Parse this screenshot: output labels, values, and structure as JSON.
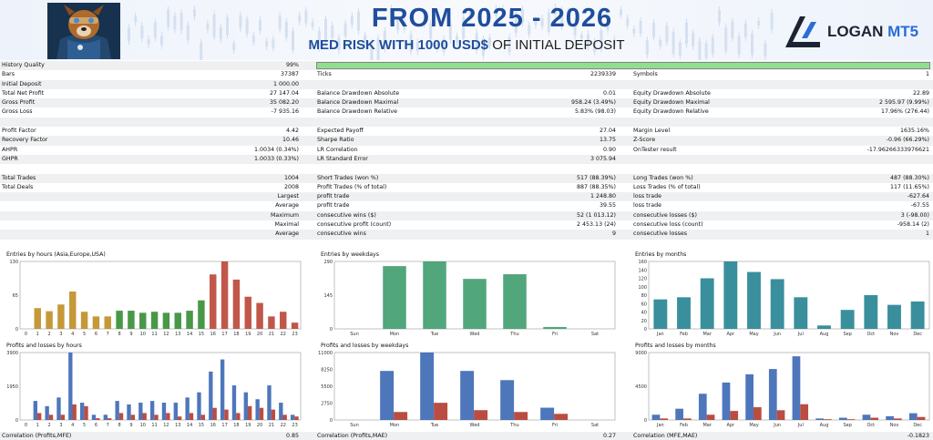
{
  "banner": {
    "title": "FROM 2025 - 2026",
    "subtitle_bold": "MED RISK WITH 1000 USD$",
    "subtitle_rest": " OF INITIAL DEPOSIT",
    "logo_word": "LOGAN",
    "logo_suffix": " MT5",
    "accent": "#1f4e9c"
  },
  "stats": [
    {
      "l1": "History Quality",
      "v1": "99%",
      "bar": true
    },
    {
      "l1": "Bars",
      "v1": "37387",
      "l2": "Ticks",
      "v2": "2239339",
      "l3": "Symbols",
      "v3": "1"
    },
    {
      "l1": "Initial Deposit",
      "v1": "1 000.00"
    },
    {
      "l1": "Total Net Profit",
      "v1": "27 147.04",
      "l2": "Balance Drawdown Absolute",
      "v2": "0.01",
      "l3": "Equity Drawdown Absolute",
      "v3": "22.89"
    },
    {
      "l1": "Gross Profit",
      "v1": "35 082.20",
      "l2": "Balance Drawdown Maximal",
      "v2": "958.24 (3.49%)",
      "l3": "Equity Drawdown Maximal",
      "v3": "2 595.97 (9.99%)"
    },
    {
      "l1": "Gross Loss",
      "v1": "-7 935.16",
      "l2": "Balance Drawdown Relative",
      "v2": "5.83% (98.03)",
      "l3": "Equity Drawdown Relative",
      "v3": "17.96% (276.44)"
    },
    {},
    {
      "l1": "Profit Factor",
      "v1": "4.42",
      "l2": "Expected Payoff",
      "v2": "27.04",
      "l3": "Margin Level",
      "v3": "1635.16%"
    },
    {
      "l1": "Recovery Factor",
      "v1": "10.46",
      "l2": "Sharpe Ratio",
      "v2": "13.75",
      "l3": "Z-Score",
      "v3": "-0.96 (66.29%)"
    },
    {
      "l1": "AHPR",
      "v1": "1.0034 (0.34%)",
      "l2": "LR Correlation",
      "v2": "0.90",
      "l3": "OnTester result",
      "v3": "-17.96266333976621"
    },
    {
      "l1": "GHPR",
      "v1": "1.0033 (0.33%)",
      "l2": "LR Standard Error",
      "v2": "3 075.94"
    },
    {},
    {
      "l1": "Total Trades",
      "v1": "1004",
      "l2": "Short Trades (won %)",
      "v2": "517 (88.39%)",
      "l3": "Long Trades (won %)",
      "v3": "487 (88.30%)"
    },
    {
      "l1": "Total Deals",
      "v1": "2008",
      "l2": "Profit Trades (% of total)",
      "v2": "887 (88.35%)",
      "l3": "Loss Trades (% of total)",
      "v3": "117 (11.65%)"
    },
    {
      "v1": "Largest",
      "l2": "profit trade",
      "v2": "1 248.80",
      "l3": "loss trade",
      "v3": "-627.64"
    },
    {
      "v1": "Average",
      "l2": "profit trade",
      "v2": "39.55",
      "l3": "loss trade",
      "v3": "-67.55"
    },
    {
      "v1": "Maximum",
      "l2": "consecutive wins ($)",
      "v2": "52 (1 013.12)",
      "l3": "consecutive losses ($)",
      "v3": "3 (-98.00)"
    },
    {
      "v1": "Maximal",
      "l2": "consecutive profit (count)",
      "v2": "2 453.13 (24)",
      "l3": "consecutive loss (count)",
      "v3": "-958.14 (2)"
    },
    {
      "v1": "Average",
      "l2": "consecutive wins",
      "v2": "9",
      "l3": "consecutive losses",
      "v3": "1"
    }
  ],
  "chart_data": [
    {
      "type": "bar",
      "title": "Entries by hours (Asia,Europe,USA)",
      "categories": [
        "0",
        "1",
        "2",
        "3",
        "4",
        "5",
        "6",
        "7",
        "8",
        "9",
        "10",
        "11",
        "12",
        "13",
        "14",
        "15",
        "16",
        "17",
        "18",
        "19",
        "20",
        "21",
        "22",
        "23"
      ],
      "values": [
        0,
        40,
        34,
        47,
        72,
        33,
        24,
        24,
        35,
        35,
        31,
        33,
        31,
        31,
        35,
        55,
        105,
        130,
        95,
        62,
        50,
        24,
        33,
        12
      ],
      "ylim": [
        0,
        130
      ],
      "yticks": [
        "0",
        "65",
        "130"
      ],
      "colors": [
        "#ffffff",
        "#bd8a1c",
        "#bd8a1c",
        "#bd8a1c",
        "#bd8a1c",
        "#bd8a1c",
        "#bd8a1c",
        "#bd8a1c",
        "#2f8a2f",
        "#2f8a2f",
        "#2f8a2f",
        "#2f8a2f",
        "#2f8a2f",
        "#2f8a2f",
        "#2f8a2f",
        "#2f8a2f",
        "#b84030",
        "#b84030",
        "#b84030",
        "#b84030",
        "#b84030",
        "#b84030",
        "#b84030",
        "#b84030"
      ]
    },
    {
      "type": "bar",
      "title": "Entries by weekdays",
      "categories": [
        "Sun",
        "Mon",
        "Tue",
        "Wed",
        "Thu",
        "Fri",
        "Sat"
      ],
      "values": [
        0,
        270,
        290,
        215,
        235,
        8,
        0
      ],
      "ylim": [
        0,
        290
      ],
      "yticks": [
        "0",
        "145",
        "290"
      ],
      "colors": [
        "#3a9a6a"
      ]
    },
    {
      "type": "bar",
      "title": "Entries by months",
      "categories": [
        "Jan",
        "Feb",
        "Mar",
        "Apr",
        "May",
        "Jun",
        "Jul",
        "Aug",
        "Sep",
        "Oct",
        "Nov",
        "Dec"
      ],
      "values": [
        70,
        75,
        120,
        160,
        135,
        118,
        75,
        8,
        45,
        80,
        57,
        65
      ],
      "ylim": [
        0,
        160
      ],
      "yticks": [
        "0",
        "20",
        "40",
        "60",
        "80",
        "100",
        "120",
        "140",
        "160"
      ],
      "colors": [
        "#1f7f8f"
      ]
    },
    {
      "type": "bar",
      "title": "Profits and losses by hours",
      "categories": [
        "0",
        "1",
        "2",
        "3",
        "4",
        "5",
        "6",
        "7",
        "8",
        "9",
        "10",
        "11",
        "12",
        "13",
        "14",
        "15",
        "16",
        "17",
        "18",
        "19",
        "20",
        "21",
        "22",
        "23"
      ],
      "series": [
        {
          "name": "profit",
          "values": [
            0,
            1100,
            800,
            1300,
            3900,
            1000,
            300,
            300,
            1100,
            900,
            1000,
            1100,
            1000,
            1000,
            1300,
            1600,
            2800,
            3500,
            2000,
            1600,
            1200,
            2000,
            1000,
            300
          ]
        },
        {
          "name": "loss",
          "values": [
            0,
            400,
            300,
            300,
            900,
            800,
            100,
            100,
            400,
            300,
            400,
            300,
            400,
            200,
            400,
            300,
            700,
            600,
            400,
            800,
            700,
            600,
            300,
            200
          ]
        }
      ],
      "ylim": [
        0,
        3900
      ],
      "yticks": [
        "0",
        "1950",
        "3900"
      ],
      "colors": [
        "#3b67b4",
        "#b33a2e"
      ]
    },
    {
      "type": "bar",
      "title": "Profits and losses by weekdays",
      "categories": [
        "Sun",
        "Mon",
        "Tue",
        "Wed",
        "Thu",
        "Fri",
        "Sat"
      ],
      "series": [
        {
          "name": "profit",
          "values": [
            0,
            8000,
            11000,
            8000,
            6500,
            2000,
            0
          ]
        },
        {
          "name": "loss",
          "values": [
            0,
            1300,
            2800,
            1600,
            1300,
            1000,
            0
          ]
        }
      ],
      "ylim": [
        0,
        11000
      ],
      "yticks": [
        "0",
        "2750",
        "5500",
        "8250",
        "11000"
      ],
      "colors": [
        "#3b67b4",
        "#b33a2e"
      ]
    },
    {
      "type": "bar",
      "title": "Profits and losses by months",
      "categories": [
        "Jan",
        "Feb",
        "Mar",
        "Apr",
        "May",
        "Jun",
        "Jul",
        "Aug",
        "Sep",
        "Oct",
        "Nov",
        "Dec"
      ],
      "series": [
        {
          "name": "profit",
          "values": [
            700,
            1500,
            3500,
            5000,
            6100,
            6800,
            8500,
            200,
            300,
            700,
            500,
            900
          ]
        },
        {
          "name": "loss",
          "values": [
            200,
            200,
            700,
            1200,
            1700,
            1300,
            2100,
            100,
            100,
            300,
            200,
            400
          ]
        }
      ],
      "ylim": [
        0,
        9000
      ],
      "yticks": [
        "0",
        "4500",
        "9000"
      ],
      "colors": [
        "#3b67b4",
        "#b33a2e"
      ]
    }
  ],
  "correlation": [
    {
      "label": "Correlation (Profits,MFE)",
      "value": "0.85"
    },
    {
      "label": "Correlation (Profits,MAE)",
      "value": "0.27"
    },
    {
      "label": "Correlation (MFE,MAE)",
      "value": "-0.1823"
    }
  ]
}
